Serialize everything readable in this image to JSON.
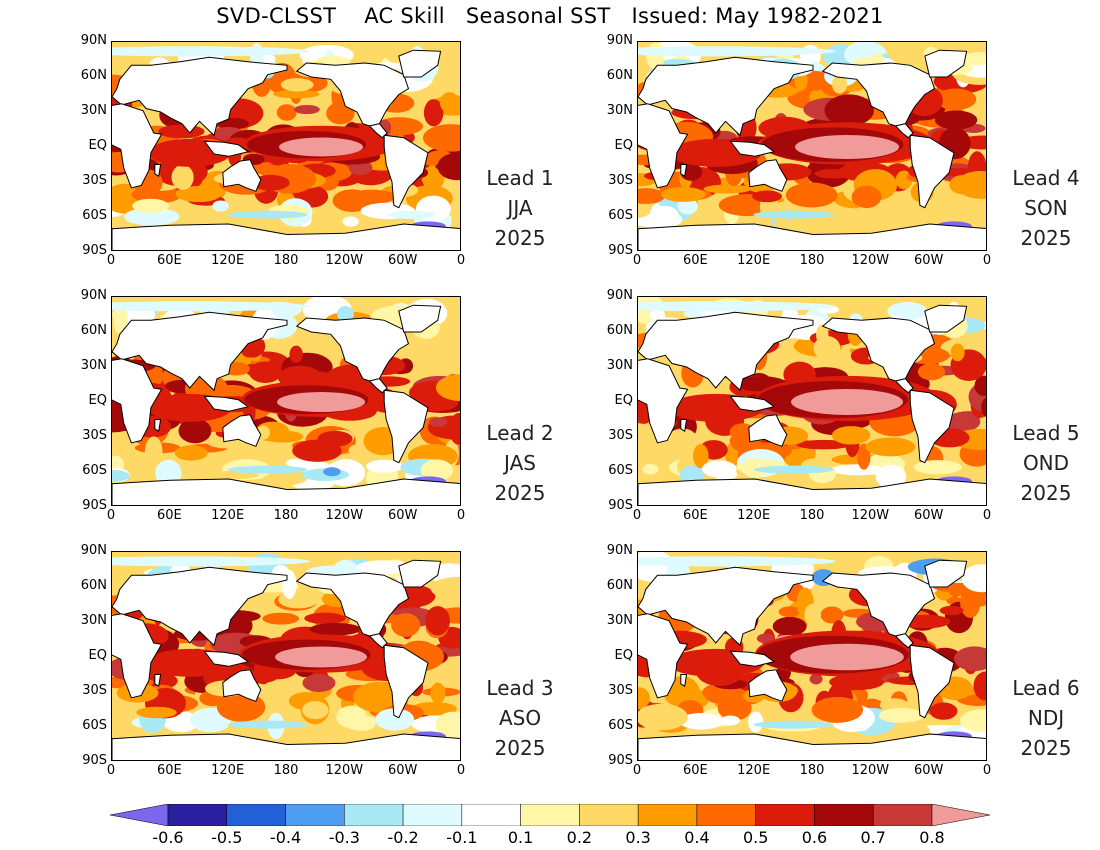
{
  "title": "SVD-CLSST    AC Skill   Seasonal SST   Issued: May 1982-2021",
  "lat_labels": [
    "90N",
    "60N",
    "30N",
    "EQ",
    "30S",
    "60S",
    "90S"
  ],
  "lon_labels": [
    "0",
    "60E",
    "120E",
    "180",
    "120W",
    "60W",
    "0"
  ],
  "panels": [
    {
      "lead": "Lead 1",
      "season": "JJA",
      "year": "2025",
      "intensity": 0.55
    },
    {
      "lead": "Lead 2",
      "season": "JAS",
      "year": "2025",
      "intensity": 0.6
    },
    {
      "lead": "Lead 3",
      "season": "ASO",
      "year": "2025",
      "intensity": 0.65
    },
    {
      "lead": "Lead 4",
      "season": "SON",
      "year": "2025",
      "intensity": 0.8
    },
    {
      "lead": "Lead 5",
      "season": "OND",
      "year": "2025",
      "intensity": 0.9
    },
    {
      "lead": "Lead 6",
      "season": "NDJ",
      "year": "2025",
      "intensity": 0.92
    }
  ],
  "colorbar": {
    "labels": [
      "-0.6",
      "-0.5",
      "-0.4",
      "-0.3",
      "-0.2",
      "-0.1",
      "0.1",
      "0.2",
      "0.3",
      "0.4",
      "0.5",
      "0.6",
      "0.7",
      "0.8"
    ],
    "colors": [
      "#7b68ee",
      "#2a1f9e",
      "#2460d8",
      "#4d9ef0",
      "#a9e9f5",
      "#e0fbff",
      "#ffffff",
      "#fff6a8",
      "#ffd966",
      "#ff9c00",
      "#ff6a00",
      "#dc1c0a",
      "#a40808",
      "#c73838",
      "#f19a9a"
    ]
  }
}
